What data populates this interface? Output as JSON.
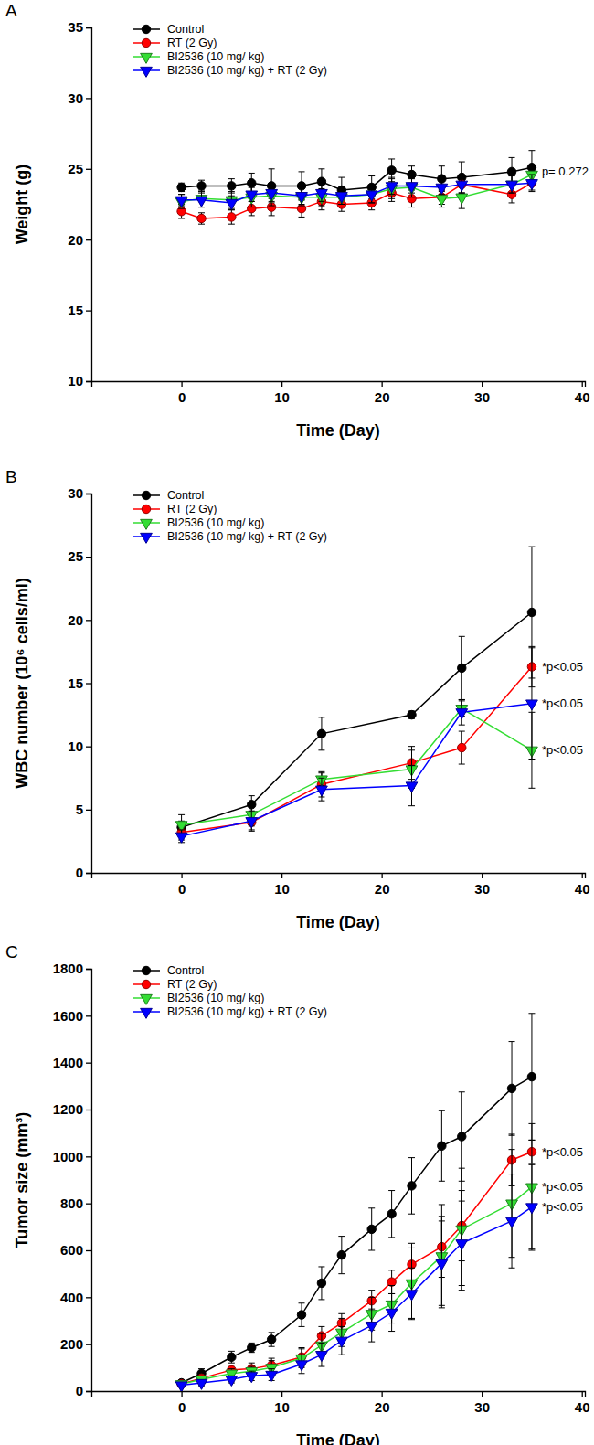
{
  "chart_data": [
    {
      "type": "line",
      "title": "A",
      "x_label": "Time (Day)",
      "y_label": "Weight (g)",
      "xlim": [
        -9,
        40.3
      ],
      "xticks": [
        0,
        10,
        20,
        30,
        40
      ],
      "ylim": [
        10,
        35
      ],
      "yticks": [
        10,
        15,
        20,
        25,
        30,
        35
      ],
      "legend": "upper left",
      "x": [
        0,
        2,
        5,
        7,
        9,
        12,
        14,
        16,
        19,
        21,
        23,
        26,
        28,
        33,
        35
      ],
      "series": [
        {
          "name": "Control",
          "color": "#000000",
          "marker": "circle",
          "values": [
            23.7,
            23.8,
            23.8,
            24.0,
            23.8,
            23.8,
            24.1,
            23.5,
            23.7,
            24.9,
            24.6,
            24.3,
            24.4,
            24.8,
            25.1
          ],
          "errors": [
            0.3,
            0.4,
            0.5,
            0.7,
            1.2,
            1.0,
            0.9,
            0.9,
            0.8,
            0.8,
            0.6,
            0.9,
            1.1,
            1.0,
            1.2
          ]
        },
        {
          "name": "RT (2 Gy)",
          "color": "#ff0000",
          "marker": "circle",
          "values": [
            22.0,
            21.5,
            21.6,
            22.2,
            22.3,
            22.2,
            22.7,
            22.5,
            22.6,
            23.3,
            22.9,
            23.0,
            23.9,
            23.2,
            24.0
          ],
          "errors": [
            0.5,
            0.4,
            0.5,
            0.5,
            0.6,
            0.6,
            0.6,
            0.5,
            0.5,
            0.6,
            0.6,
            0.5,
            0.6,
            0.6,
            0.5
          ]
        },
        {
          "name": "BI2536 (10 mg/ kg)",
          "color": "#33dd33",
          "marker": "triangle-down",
          "values": [
            22.7,
            22.9,
            22.8,
            23.0,
            23.1,
            23.0,
            23.0,
            23.0,
            23.2,
            23.6,
            23.7,
            22.9,
            23.0,
            23.9,
            24.6
          ],
          "errors": [
            0.5,
            0.6,
            0.6,
            0.7,
            0.7,
            0.6,
            0.6,
            0.5,
            0.6,
            0.7,
            0.7,
            0.6,
            0.8,
            0.6,
            0.5
          ]
        },
        {
          "name": "BI2536 (10 mg/ kg) + RT (2 Gy)",
          "color": "#0000ff",
          "marker": "triangle-down",
          "values": [
            22.8,
            22.8,
            22.6,
            23.2,
            23.3,
            23.1,
            23.3,
            23.1,
            23.2,
            23.8,
            23.8,
            23.7,
            23.9,
            23.9,
            24.0
          ],
          "errors": [
            0.4,
            0.5,
            0.5,
            0.5,
            0.6,
            0.6,
            0.6,
            0.6,
            0.6,
            0.6,
            0.5,
            0.5,
            0.6,
            0.6,
            0.6
          ]
        }
      ],
      "annotations": [
        {
          "text": "p= 0.272",
          "x": 36,
          "y": 24.8
        }
      ]
    },
    {
      "type": "line",
      "title": "B",
      "x_label": "Time (Day)",
      "y_label": "WBC number (10⁶ cells/ml)",
      "xlim": [
        -9,
        40.3
      ],
      "xticks": [
        0,
        10,
        20,
        30,
        40
      ],
      "ylim": [
        0,
        30
      ],
      "yticks": [
        0,
        5,
        10,
        15,
        20,
        25,
        30
      ],
      "legend": "upper left",
      "x": [
        0,
        7,
        14,
        23,
        28,
        35
      ],
      "series": [
        {
          "name": "Control",
          "color": "#000000",
          "marker": "circle",
          "values": [
            3.6,
            5.4,
            11.0,
            12.5,
            16.2,
            20.6
          ],
          "errors": [
            0.5,
            0.7,
            1.3,
            0.3,
            2.5,
            5.2
          ]
        },
        {
          "name": "RT (2 Gy)",
          "color": "#ff0000",
          "marker": "circle",
          "values": [
            3.2,
            4.0,
            7.0,
            8.7,
            9.9,
            16.3
          ],
          "errors": [
            0.6,
            0.6,
            1.0,
            1.3,
            1.3,
            1.6
          ]
        },
        {
          "name": "BI2536 (10 mg/ kg)",
          "color": "#33dd33",
          "marker": "triangle-down",
          "values": [
            3.8,
            4.6,
            7.4,
            8.2,
            13.0,
            9.7
          ],
          "errors": [
            0.8,
            0.9,
            0.5,
            1.5,
            0.6,
            3.0
          ]
        },
        {
          "name": "BI2536 (10 mg/ kg) + RT (2 Gy)",
          "color": "#0000ff",
          "marker": "triangle-down",
          "values": [
            2.9,
            4.1,
            6.6,
            6.9,
            12.7,
            13.4
          ],
          "errors": [
            0.5,
            0.8,
            0.9,
            1.6,
            1.0,
            4.4
          ]
        }
      ],
      "annotations": [
        {
          "text": "*p<0.05",
          "x": 36,
          "y": 16.3
        },
        {
          "text": "*p<0.05",
          "x": 36,
          "y": 13.4
        },
        {
          "text": "*p<0.05",
          "x": 36,
          "y": 9.7
        }
      ]
    },
    {
      "type": "line",
      "title": "C",
      "x_label": "Time (Day)",
      "y_label": "Tumor size (mm³)",
      "xlim": [
        -9,
        40.3
      ],
      "xticks": [
        0,
        10,
        20,
        30,
        40
      ],
      "ylim": [
        0,
        1800
      ],
      "yticks": [
        0,
        200,
        400,
        600,
        800,
        1000,
        1200,
        1400,
        1600,
        1800
      ],
      "legend": "upper left",
      "x": [
        0,
        2,
        5,
        7,
        9,
        12,
        14,
        16,
        19,
        21,
        23,
        26,
        28,
        33,
        35
      ],
      "series": [
        {
          "name": "Control",
          "color": "#000000",
          "marker": "circle",
          "values": [
            35,
            75,
            145,
            185,
            220,
            325,
            460,
            580,
            690,
            755,
            875,
            1045,
            1085,
            1290,
            1340
          ],
          "errors": [
            10,
            20,
            25,
            20,
            30,
            50,
            70,
            80,
            90,
            100,
            120,
            150,
            190,
            200,
            270
          ]
        },
        {
          "name": "RT (2 Gy)",
          "color": "#ff0000",
          "marker": "circle",
          "values": [
            30,
            55,
            90,
            95,
            110,
            145,
            235,
            290,
            385,
            465,
            540,
            615,
            705,
            985,
            1020
          ],
          "errors": [
            10,
            15,
            20,
            25,
            30,
            40,
            40,
            40,
            45,
            50,
            90,
            130,
            150,
            110,
            50
          ]
        },
        {
          "name": "BI2536 (10 mg/ kg)",
          "color": "#33dd33",
          "marker": "triangle-down",
          "values": [
            30,
            50,
            75,
            85,
            100,
            140,
            195,
            250,
            330,
            370,
            460,
            575,
            690,
            800,
            870
          ],
          "errors": [
            10,
            15,
            20,
            20,
            30,
            40,
            50,
            60,
            70,
            80,
            150,
            220,
            260,
            230,
            270
          ]
        },
        {
          "name": "BI2536 (10 mg/ kg) + RT (2 Gy)",
          "color": "#0000ff",
          "marker": "triangle-down",
          "values": [
            25,
            35,
            50,
            65,
            70,
            115,
            155,
            215,
            280,
            335,
            415,
            545,
            630,
            725,
            785
          ],
          "errors": [
            8,
            12,
            15,
            20,
            25,
            40,
            50,
            60,
            70,
            80,
            110,
            180,
            180,
            200,
            180
          ]
        }
      ],
      "annotations": [
        {
          "text": "*p<0.05",
          "x": 36,
          "y": 1020
        },
        {
          "text": "*p<0.05",
          "x": 36,
          "y": 870
        },
        {
          "text": "*p<0.05",
          "x": 36,
          "y": 785
        }
      ]
    }
  ]
}
